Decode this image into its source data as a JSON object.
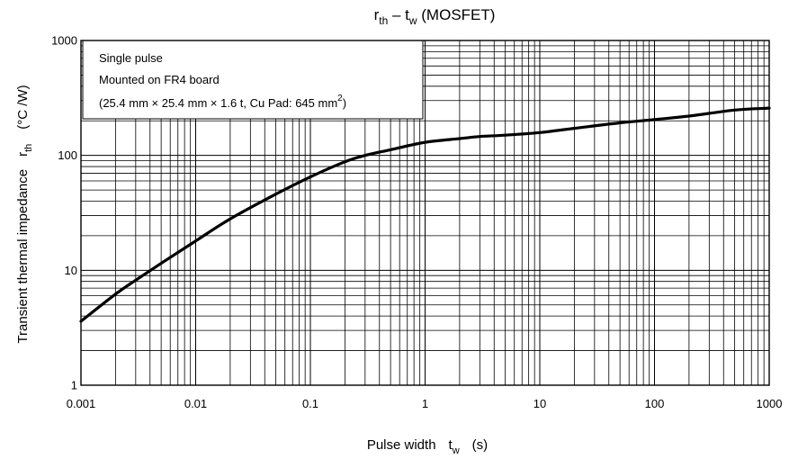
{
  "chart_data": {
    "type": "line",
    "title": {
      "main": "r",
      "main_sub": "th",
      "sep": " – t",
      "sep_sub": "w",
      "suffix": " (MOSFET)"
    },
    "xlabel": {
      "main": "Pulse width",
      "sym": "t",
      "sym_sub": "w",
      "unit": "(s)"
    },
    "ylabel": {
      "main": "Transient thermal impedance",
      "sym": "r",
      "sym_sub": "th",
      "unit": "(°C /W)"
    },
    "x_scale": "log",
    "y_scale": "log",
    "xlim": [
      0.001,
      1000
    ],
    "ylim": [
      1,
      1000
    ],
    "x_tick_labels": [
      "0.001",
      "0.01",
      "0.1",
      "1",
      "10",
      "100",
      "1000"
    ],
    "y_tick_labels": [
      "1",
      "10",
      "100",
      "1000"
    ],
    "grid": true,
    "annotation": {
      "line1": "Single pulse",
      "line2": "Mounted on FR4 board",
      "line3": "(25.4 mm × 25.4 mm × 1.6 t, Cu Pad: 645 mm",
      "line3_sup": "2",
      "line3_end": ")"
    },
    "series": [
      {
        "x": [
          0.001,
          0.002,
          0.003,
          0.005,
          0.01,
          0.02,
          0.05,
          0.1,
          0.2,
          0.3,
          0.5,
          1,
          2,
          3,
          5,
          10,
          20,
          50,
          100,
          200,
          500,
          1000
        ],
        "y": [
          3.6,
          6.2,
          8.2,
          11.5,
          18,
          28,
          46,
          65,
          88,
          100,
          112,
          130,
          140,
          146,
          150,
          158,
          172,
          192,
          205,
          220,
          248,
          258
        ]
      }
    ]
  }
}
